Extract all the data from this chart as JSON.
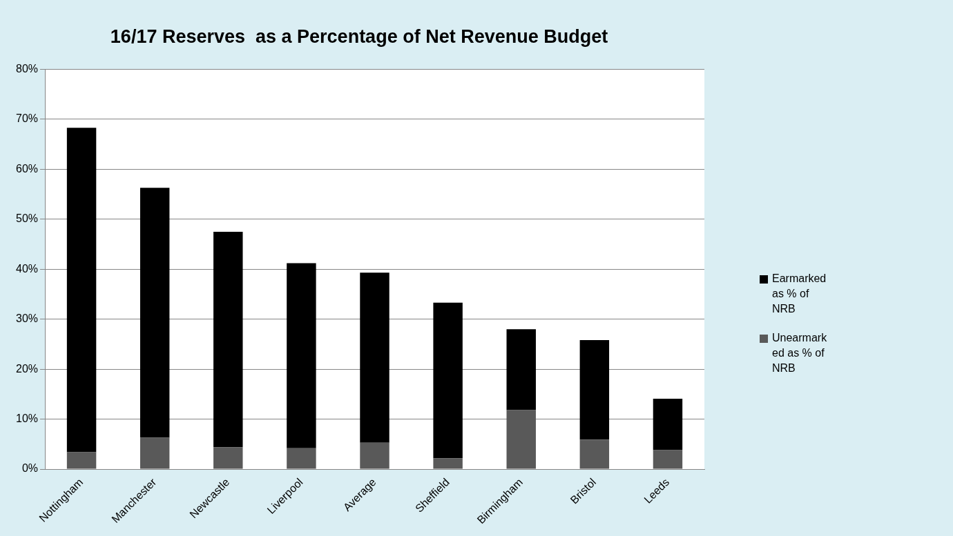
{
  "chart_data": {
    "type": "bar",
    "title": "16/17 Reserves  as a Percentage of Net Revenue Budget",
    "categories": [
      "Nottingham",
      "Manchester",
      "Newcastle",
      "Liverpool",
      "Average",
      "Sheffield",
      "Birmingham",
      "Bristol",
      "Leeds"
    ],
    "stacked": true,
    "series": [
      {
        "name": "Unearmarked as % of NRB",
        "color": "#595959",
        "values": [
          3.4,
          6.3,
          4.4,
          4.2,
          5.3,
          2.2,
          11.8,
          5.9,
          3.8
        ]
      },
      {
        "name": "Earmarked as % of NRB",
        "color": "#000000",
        "values": [
          64.9,
          50.0,
          43.1,
          37.0,
          34.0,
          31.1,
          16.2,
          19.9,
          10.3
        ]
      }
    ],
    "ylim": [
      0,
      80
    ],
    "yticks": [
      {
        "value": 0,
        "label": "0%"
      },
      {
        "value": 10,
        "label": "10%"
      },
      {
        "value": 20,
        "label": "20%"
      },
      {
        "value": 30,
        "label": "30%"
      },
      {
        "value": 40,
        "label": "40%"
      },
      {
        "value": 50,
        "label": "50%"
      },
      {
        "value": 60,
        "label": "60%"
      },
      {
        "value": 70,
        "label": "70%"
      },
      {
        "value": 80,
        "label": "80%"
      }
    ],
    "grid": "y",
    "legend": "right"
  }
}
